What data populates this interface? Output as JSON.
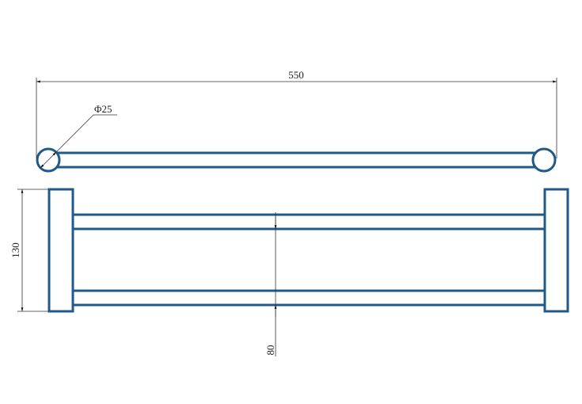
{
  "drawing": {
    "overall_length": "550",
    "tube_diameter": "Φ25",
    "overall_height": "130",
    "rail_spacing": "80",
    "part_color": "#1f5a8a"
  }
}
